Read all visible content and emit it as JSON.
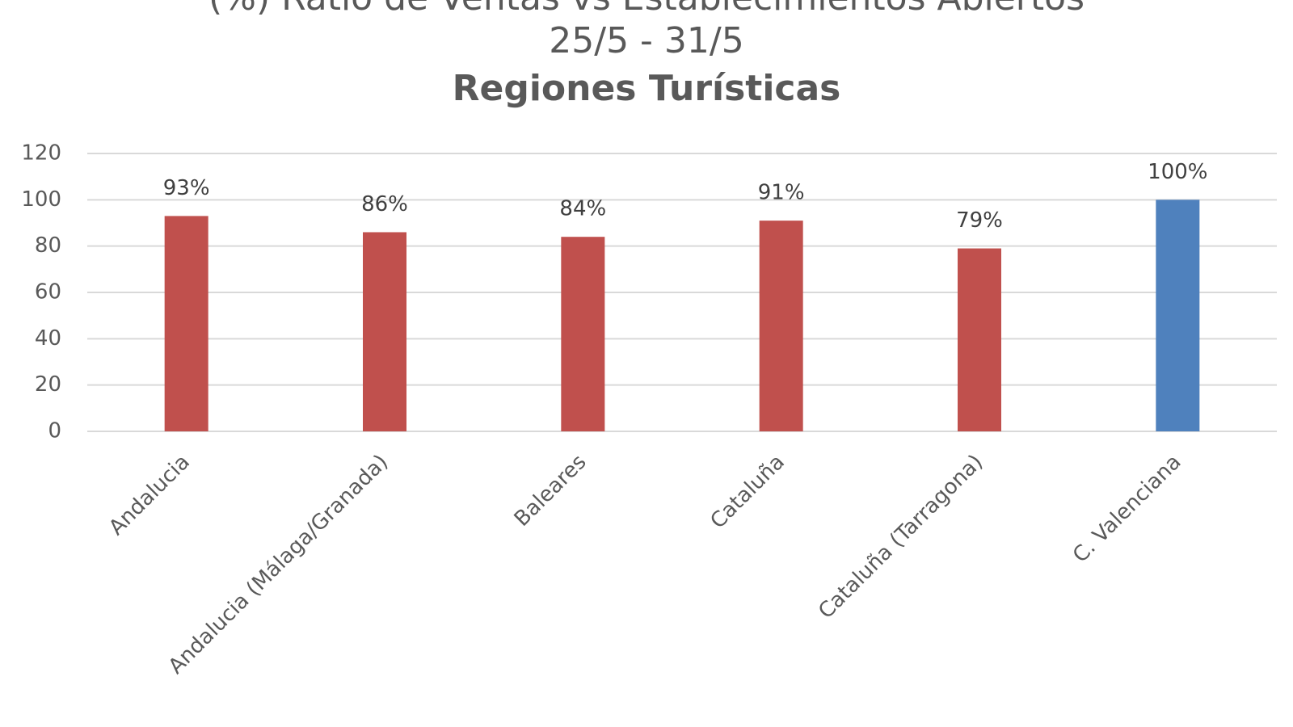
{
  "chart_data": {
    "type": "bar",
    "title": "(%) Ratio de Ventas vs Establecimientos Abiertos",
    "subtitle": "25/5 - 31/5",
    "subtitle2": "Regiones Turísticas",
    "categories": [
      "Andalucia",
      "Andalucia (Málaga/Granada)",
      "Baleares",
      "Cataluña",
      "Cataluña (Tarragona)",
      "C. Valenciana"
    ],
    "values": [
      93,
      86,
      84,
      91,
      79,
      100
    ],
    "value_labels": [
      "93%",
      "86%",
      "84%",
      "91%",
      "79%",
      "100%"
    ],
    "colors": [
      "#c0504d",
      "#c0504d",
      "#c0504d",
      "#c0504d",
      "#c0504d",
      "#4f81bd"
    ],
    "ylim": [
      0,
      120
    ],
    "yticks": [
      0,
      20,
      40,
      60,
      80,
      100,
      120
    ],
    "grid": true
  }
}
